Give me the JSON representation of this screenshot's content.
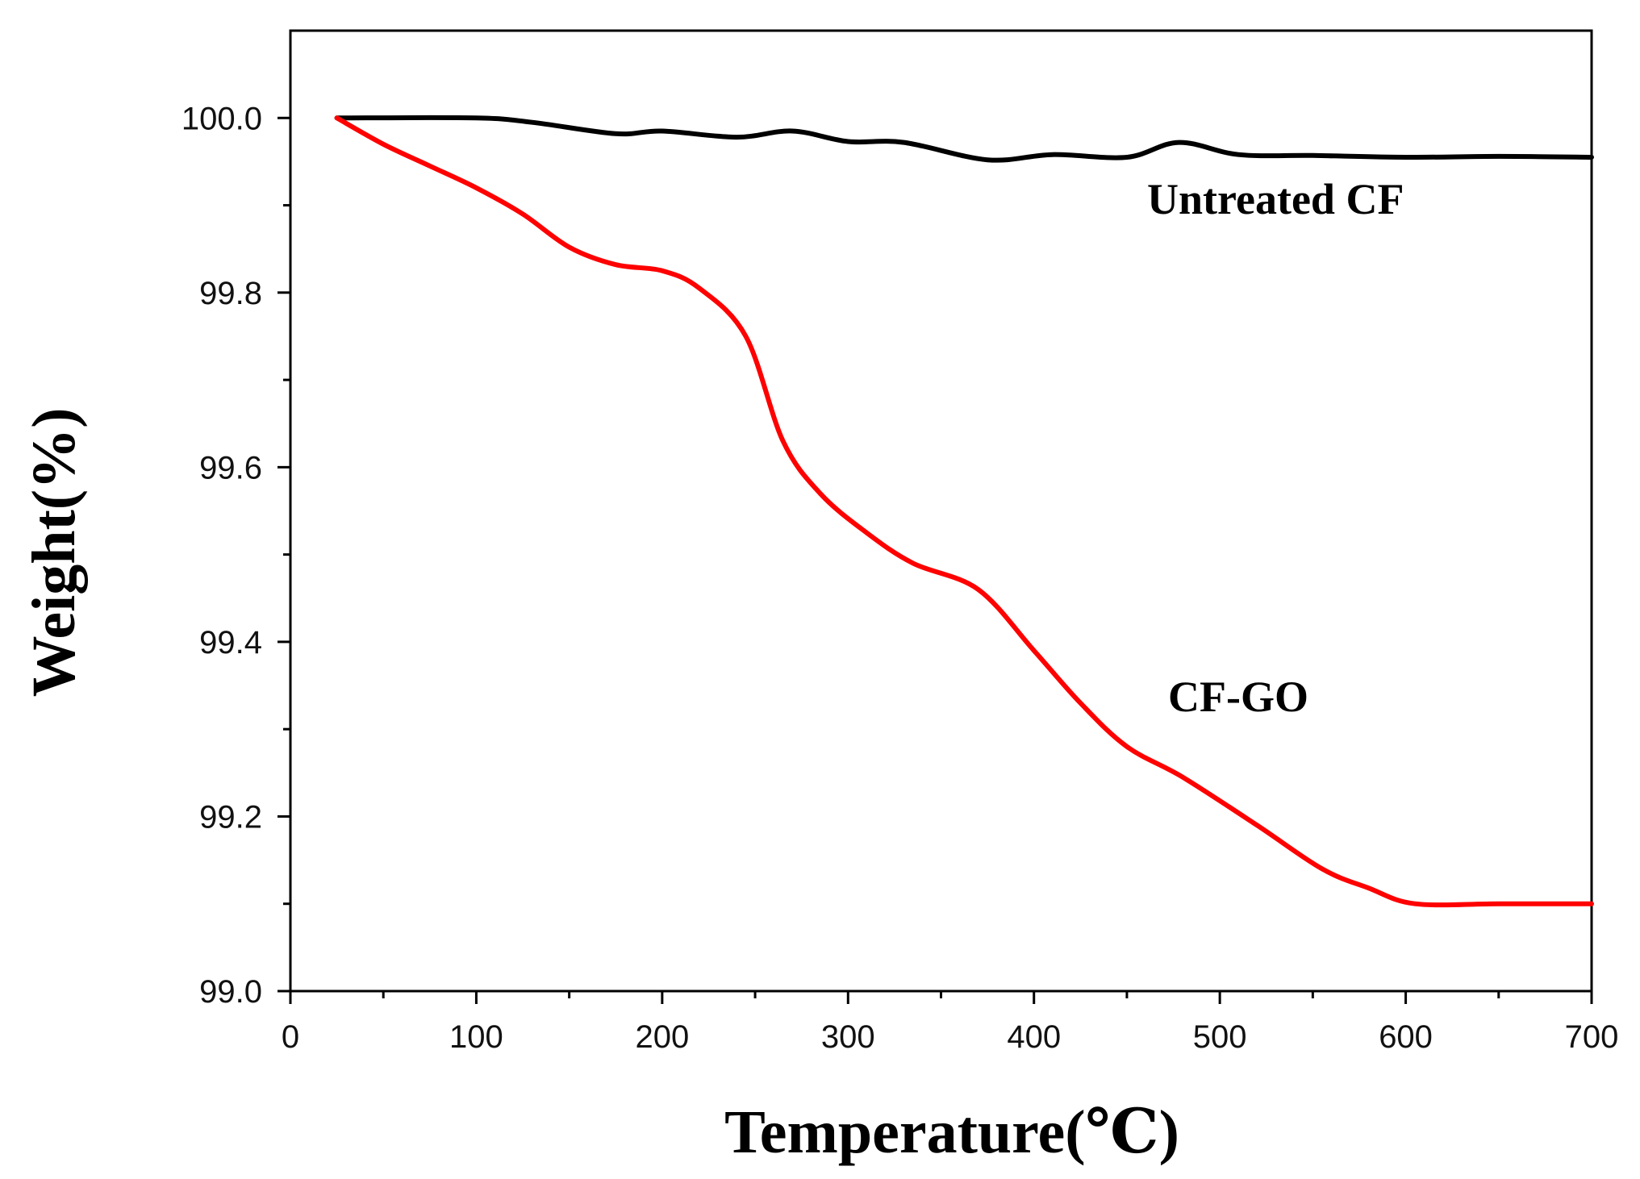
{
  "chart_data": {
    "type": "line",
    "title": "",
    "xlabel": "Temperature(℃)",
    "ylabel": "Weight(%)",
    "xlim": [
      0,
      700
    ],
    "ylim": [
      99.0,
      100.1
    ],
    "xticks": [
      0,
      100,
      200,
      300,
      400,
      500,
      600,
      700
    ],
    "yticks": [
      99.0,
      99.2,
      99.4,
      99.6,
      99.8,
      100.0
    ],
    "xtick_labels": [
      "0",
      "100",
      "200",
      "300",
      "400",
      "500",
      "600",
      "700"
    ],
    "ytick_labels": [
      "99.0",
      "99.2",
      "99.4",
      "99.6",
      "99.8",
      "100.0"
    ],
    "grid": false,
    "legend": "none",
    "series": [
      {
        "name": "Untreated CF",
        "color": "#000000",
        "x": [
          25,
          100,
          130,
          175,
          200,
          240,
          270,
          300,
          330,
          375,
          410,
          450,
          478,
          510,
          550,
          600,
          650,
          700
        ],
        "y": [
          100.0,
          100.0,
          99.995,
          99.982,
          99.985,
          99.978,
          99.985,
          99.973,
          99.972,
          99.952,
          99.958,
          99.955,
          99.972,
          99.958,
          99.957,
          99.955,
          99.956,
          99.955
        ]
      },
      {
        "name": "CF-GO",
        "color": "#ff0000",
        "x": [
          25,
          50,
          75,
          100,
          125,
          150,
          175,
          200,
          220,
          245,
          265,
          285,
          310,
          335,
          370,
          400,
          425,
          450,
          480,
          520,
          555,
          580,
          605,
          650,
          700
        ],
        "y": [
          100.0,
          99.97,
          99.945,
          99.92,
          99.89,
          99.852,
          99.832,
          99.825,
          99.805,
          99.75,
          99.63,
          99.57,
          99.525,
          99.49,
          99.46,
          99.39,
          99.33,
          99.28,
          99.245,
          99.19,
          99.14,
          99.118,
          99.1,
          99.1,
          99.1
        ]
      }
    ]
  }
}
